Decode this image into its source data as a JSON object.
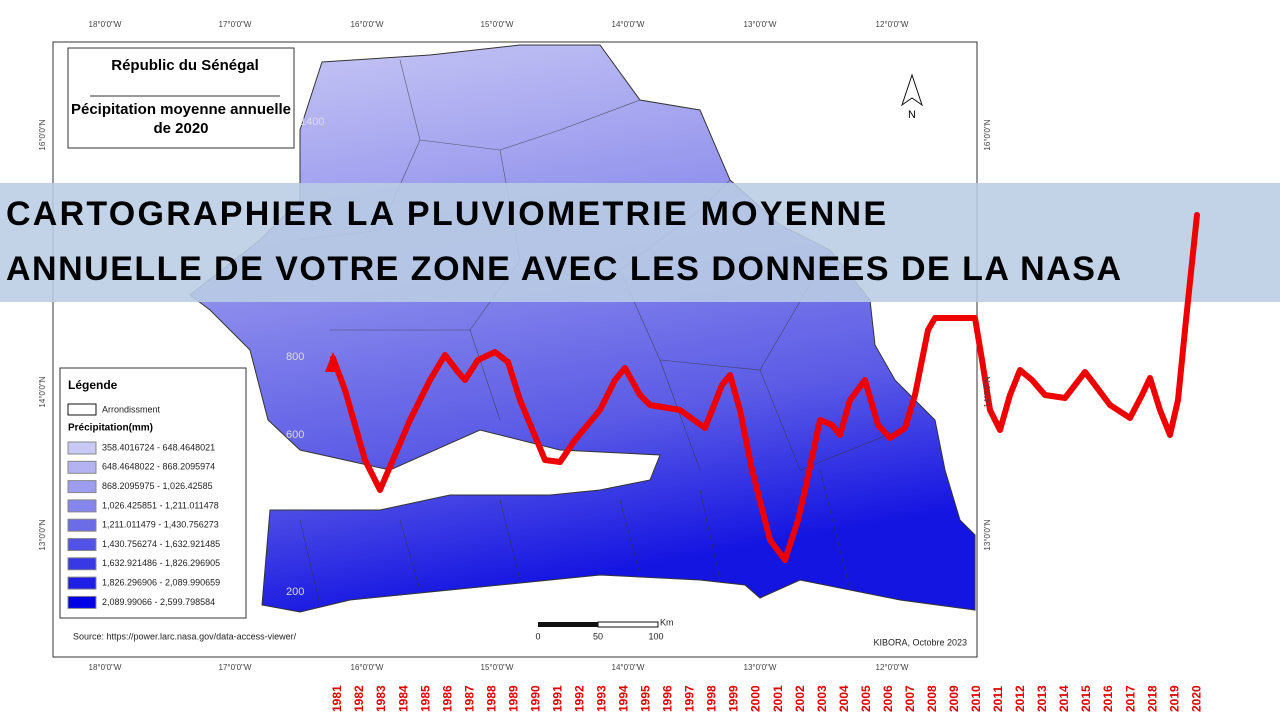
{
  "map": {
    "title": "Républic du Sénégal",
    "subtitle": "Pécipitation moyenne annuelle de 2020",
    "lon_labels": [
      "18°0'0\"W",
      "17°0'0\"W",
      "16°0'0\"W",
      "15°0'0\"W",
      "14°0'0\"W",
      "13°0'0\"W",
      "12°0'0\"W"
    ],
    "lat_labels": [
      "16°0'0\"N",
      "14°0'0\"N",
      "13°0'0\"N"
    ],
    "contour_labels": [
      "1400",
      "800",
      "600",
      "200"
    ],
    "north": "N",
    "legend": {
      "title": "Légende",
      "boundary": "Arrondissment",
      "class_title": "Précipitation(mm)",
      "classes": [
        {
          "label": "358.4016724 - 648.4648021",
          "color": "#c9c9f5"
        },
        {
          "label": "648.4648022 - 868.2095974",
          "color": "#b3b3f1"
        },
        {
          "label": "868.2095975 - 1,026.42585",
          "color": "#9d9def"
        },
        {
          "label": "1,026.425851 - 1,211.011478",
          "color": "#8585ec"
        },
        {
          "label": "1,211.011479 - 1,430.756273",
          "color": "#6c6ce8"
        },
        {
          "label": "1,430.756274 - 1,632.921485",
          "color": "#5252e6"
        },
        {
          "label": "1,632.921486 - 1,826.296905",
          "color": "#3838e4"
        },
        {
          "label": "1,826.296906 - 2,089.990659",
          "color": "#1e1ee4"
        },
        {
          "label": "2,089.99066 - 2,599.798584",
          "color": "#0000e6"
        }
      ]
    },
    "scale_bar": {
      "ticks": [
        "0",
        "50",
        "100"
      ],
      "unit": "Km"
    },
    "source": "Source: https://power.larc.nasa.gov/data-access-viewer/",
    "credit": "KIBORA, Octobre 2023"
  },
  "banner": {
    "lines": [
      "CARTOGRAPHIER LA PLUVIOMETRIE MOYENNE",
      "ANNUELLE DE VOTRE ZONE AVEC LES DONNEES DE LA NASA"
    ]
  },
  "years": [
    1981,
    1982,
    1983,
    1984,
    1985,
    1986,
    1987,
    1988,
    1989,
    1990,
    1991,
    1992,
    1993,
    1994,
    1995,
    1996,
    1997,
    1998,
    1999,
    2000,
    2001,
    2002,
    2003,
    2004,
    2005,
    2006,
    2007,
    2008,
    2009,
    2010,
    2011,
    2012,
    2013,
    2014,
    2015,
    2016,
    2017,
    2018,
    2019,
    2020
  ]
}
